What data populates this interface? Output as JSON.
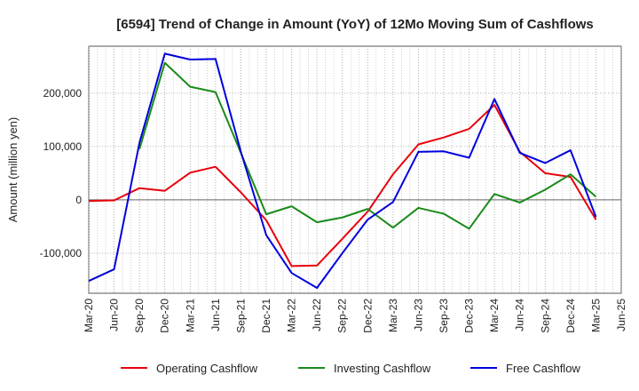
{
  "chart_data": {
    "type": "line",
    "title": "[6594]  Trend of Change in Amount (YoY) of 12Mo Moving Sum of Cashflows",
    "xlabel": "",
    "ylabel": "Amount (million yen)",
    "ylim": [
      -175000,
      288000
    ],
    "yticks": [
      -100000,
      0,
      100000,
      200000
    ],
    "ytick_labels": [
      "-100,000",
      "0",
      "100,000",
      "200,000"
    ],
    "grid": true,
    "legend_position": "bottom",
    "categories": [
      "Mar-20",
      "Jun-20",
      "Sep-20",
      "Dec-20",
      "Mar-21",
      "Jun-21",
      "Sep-21",
      "Dec-21",
      "Mar-22",
      "Jun-22",
      "Sep-22",
      "Dec-22",
      "Mar-23",
      "Jun-23",
      "Sep-23",
      "Dec-23",
      "Mar-24",
      "Jun-24",
      "Sep-24",
      "Dec-24",
      "Mar-25",
      "Jun-25"
    ],
    "series": [
      {
        "name": "Operating Cashflow",
        "color": "#e8000b",
        "values": [
          -2000,
          -1000,
          22000,
          17000,
          51000,
          62000,
          14000,
          -38000,
          -124000,
          -123000,
          -73000,
          -22000,
          48000,
          104000,
          117000,
          133000,
          178000,
          90000,
          50000,
          43000,
          -37000,
          null
        ]
      },
      {
        "name": "Investing Cashflow",
        "color": "#1a8a1a",
        "values": [
          null,
          null,
          95000,
          257000,
          212000,
          202000,
          88000,
          -27000,
          -12000,
          -42000,
          -33000,
          -17000,
          -52000,
          -15000,
          -26000,
          -54000,
          11000,
          -5000,
          19000,
          48000,
          6000,
          null
        ]
      },
      {
        "name": "Free Cashflow",
        "color": "#0000dd",
        "values": [
          -152000,
          -130000,
          107000,
          274000,
          263000,
          264000,
          90000,
          -66000,
          -137000,
          -165000,
          -100000,
          -37000,
          -4000,
          90000,
          91000,
          79000,
          189000,
          88000,
          69000,
          93000,
          -32000,
          null
        ]
      }
    ]
  }
}
